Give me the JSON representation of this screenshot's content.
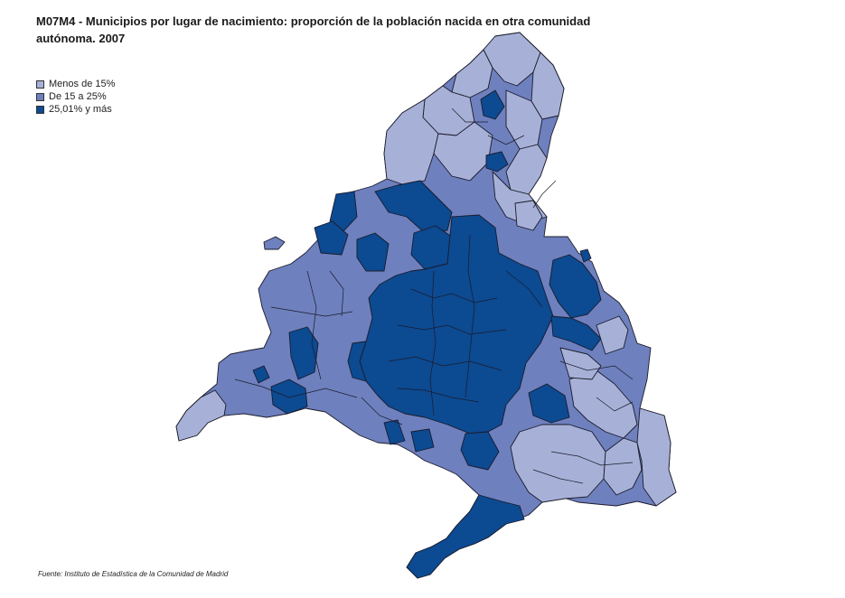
{
  "title": {
    "code": "M07M4",
    "text": "- Municipios por lugar de nacimiento: proporción de la población nacida en otra comunidad autónoma. 2007"
  },
  "legend": {
    "items": [
      {
        "label": "Menos de 15%",
        "color": "#a7b1d8"
      },
      {
        "label": "De 15 a 25%",
        "color": "#6e80be"
      },
      {
        "label": "25,01%  y más",
        "color": "#0c4a92"
      }
    ]
  },
  "source": "Fuente: Instituto de Estadística de la Comunidad de Madrid",
  "colors": {
    "border": "#1b1b2a",
    "low": "#a7b1d8",
    "mid": "#6e80be",
    "high": "#0c4a92"
  }
}
